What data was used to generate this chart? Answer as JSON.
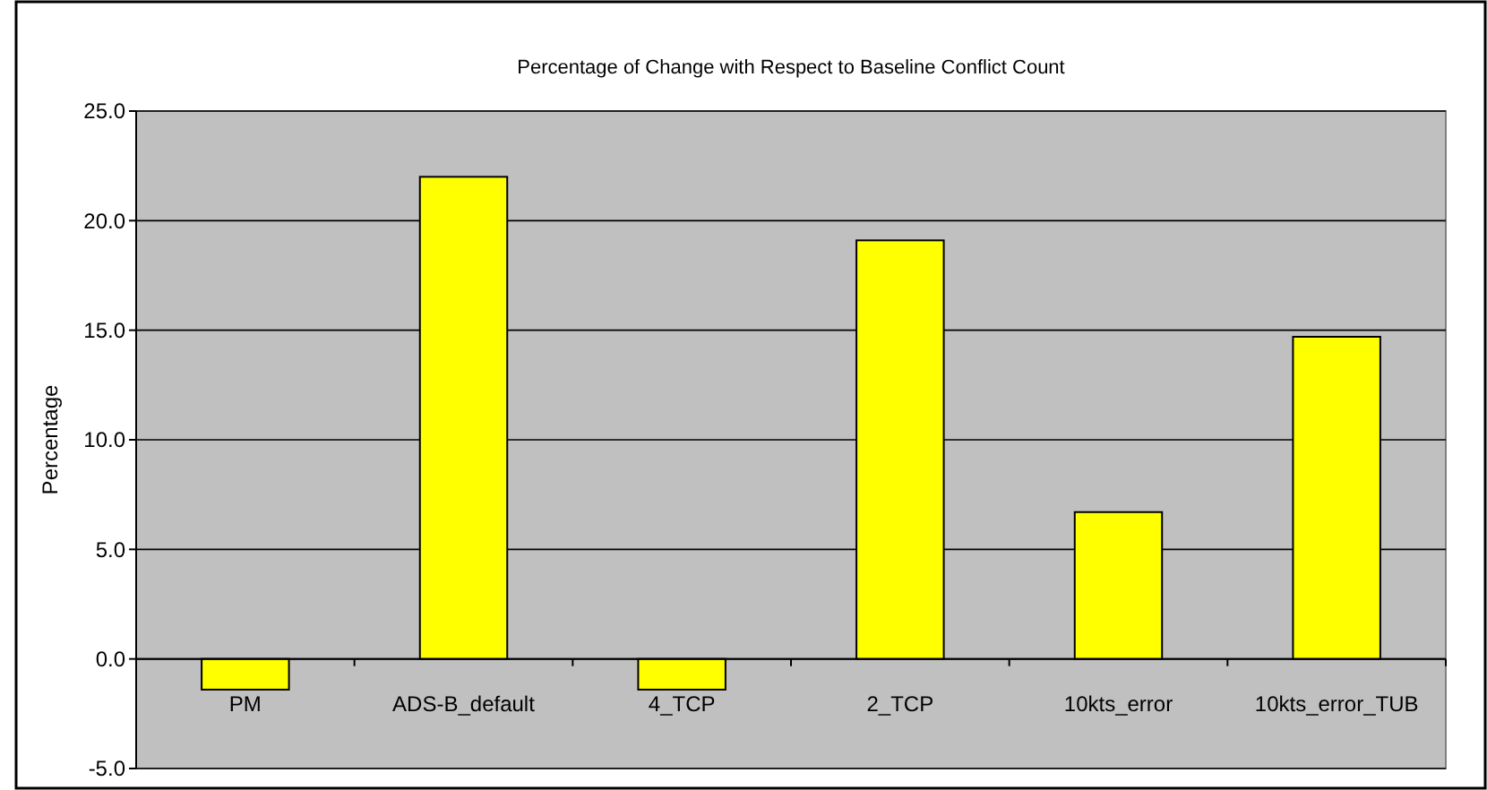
{
  "chart_data": {
    "type": "bar",
    "title": "Percentage of Change with Respect to Baseline Conflict Count",
    "ylabel": "Percentage",
    "categories": [
      "PM",
      "ADS-B_default",
      "4_TCP",
      "2_TCP",
      "10kts_error",
      "10kts_error_TUB"
    ],
    "values": [
      -1.4,
      22.0,
      -1.4,
      19.1,
      6.7,
      14.7
    ],
    "color": "#ffff00",
    "ylim": [
      -5,
      25
    ],
    "yticks": [
      {
        "value": -5,
        "label": "-5.0"
      },
      {
        "value": 0,
        "label": "0.0"
      },
      {
        "value": 5,
        "label": "5.0"
      },
      {
        "value": 10,
        "label": "10.0"
      },
      {
        "value": 15,
        "label": "15.0"
      },
      {
        "value": 20,
        "label": "20.0"
      },
      {
        "value": 25,
        "label": "25.0"
      }
    ],
    "grid": "y"
  }
}
